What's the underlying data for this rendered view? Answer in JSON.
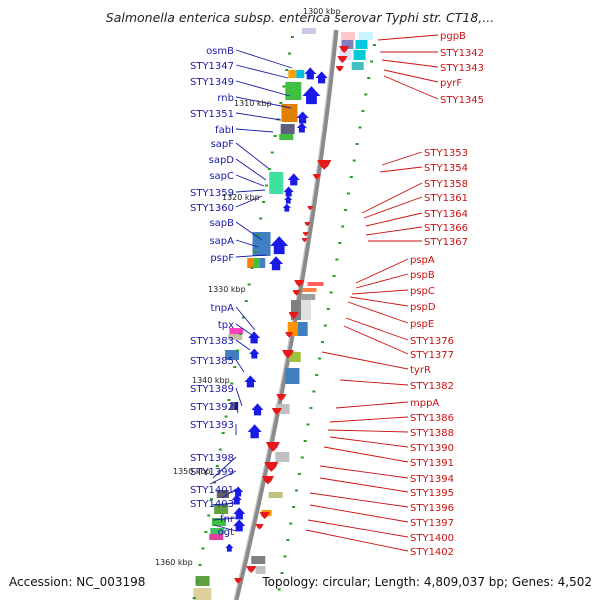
{
  "title": "Salmonella enterica subsp. enterica serovar Typhi str. CT18,...",
  "footer": {
    "accession": "Accession: NC_003198",
    "topology": "Topology: circular; Length: 4,809,037 bp; Genes: 4,502"
  },
  "colors": {
    "backbone": "#808080",
    "left_label": "#1a1aa8",
    "right_label": "#cc1111",
    "left_arrow": "#1a1ae6",
    "right_arrow": "#e61a1a",
    "tick": "#2a9a2a"
  },
  "scale_labels": [
    "1300 kbp",
    "1310 kbp",
    "1320 kbp",
    "1330 kbp",
    "1340 kbp",
    "1350 kbp",
    "1360 kbp"
  ],
  "left_labels": [
    "osmB",
    "STY1347",
    "STY1349",
    "rnb",
    "STY1351",
    "fabI",
    "sapF",
    "sapD",
    "sapC",
    "STY1359",
    "STY1360",
    "sapB",
    "sapA",
    "pspF",
    "tnpA",
    "tpx",
    "STY1383",
    "STY1385",
    "STY1389",
    "STY1392",
    "STY1393",
    "STY1398",
    "STY1399",
    "STY1401",
    "STY1403",
    "fnr",
    "ogt"
  ],
  "right_labels": [
    "pgpB",
    "STY1342",
    "STY1343",
    "pyrF",
    "STY1345",
    "STY1353",
    "STY1354",
    "STY1358",
    "STY1361",
    "STY1364",
    "STY1366",
    "STY1367",
    "pspA",
    "pspB",
    "pspC",
    "pspD",
    "pspE",
    "STY1376",
    "STY1377",
    "tyrR",
    "STY1382",
    "mppA",
    "STY1386",
    "STY1388",
    "STY1390",
    "STY1391",
    "STY1394",
    "STY1395",
    "STY1396",
    "STY1397",
    "STY1400",
    "STY1402"
  ]
}
